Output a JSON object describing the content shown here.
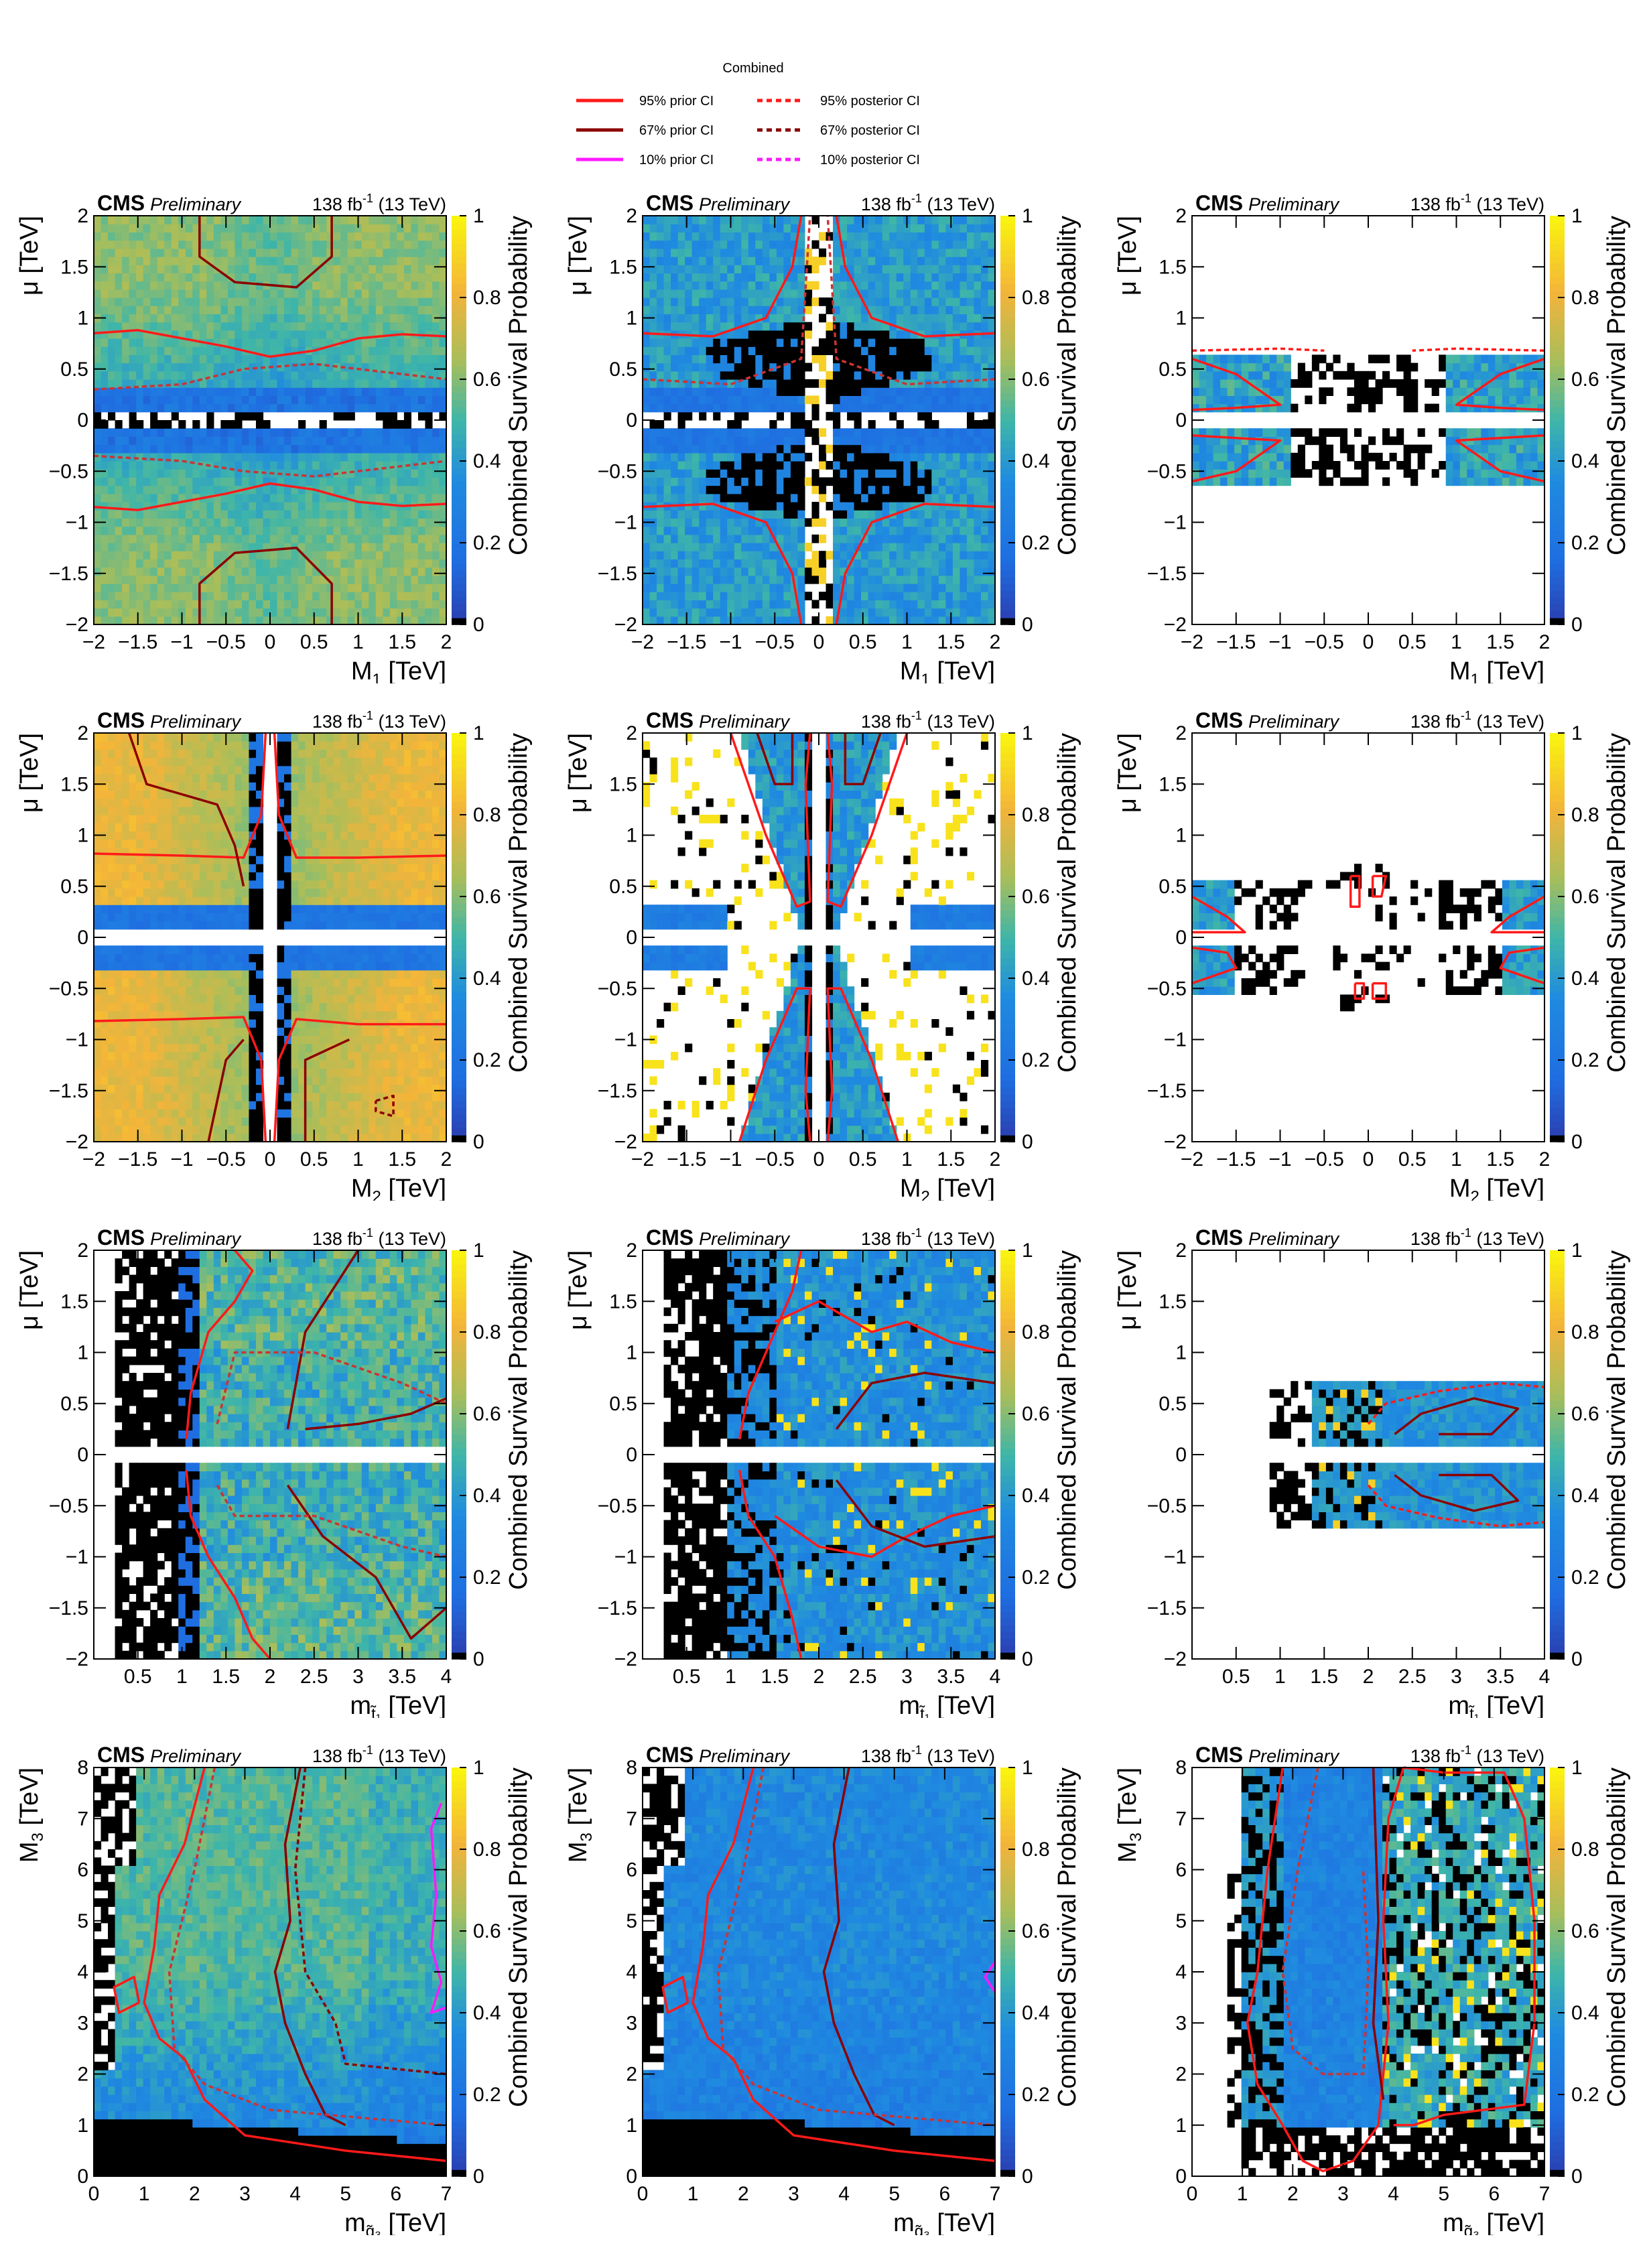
{
  "legend": {
    "title": "Combined",
    "entries": [
      {
        "label": "95%  prior CI",
        "color": "#ff1a1a",
        "style": "solid"
      },
      {
        "label": "95% posterior CI",
        "color": "#ff1a1a",
        "style": "dashed"
      },
      {
        "label": "67%  prior CI",
        "color": "#8b0000",
        "style": "solid"
      },
      {
        "label": "67% posterior CI",
        "color": "#8b0000",
        "style": "dashed"
      },
      {
        "label": "10%  prior CI",
        "color": "#ff1aff",
        "style": "solid"
      },
      {
        "label": "10% posterior CI",
        "color": "#ff1aff",
        "style": "dashed"
      }
    ]
  },
  "common": {
    "cms": "CMS",
    "preliminary": "Preliminary",
    "lumi_value": "138 fb",
    "lumi_exp": "-1",
    "energy": "(13 TeV)",
    "zlabel": "Combined Survival Probability",
    "zticks": [
      "0",
      "0.2",
      "0.4",
      "0.6",
      "0.8",
      "1"
    ]
  },
  "colors": {
    "dark_blue": "#2a3fb0",
    "blue": "#1f8be0",
    "teal": "#3fb6a8",
    "green_yellow": "#a9be5a",
    "orange": "#f4b43a",
    "yellow": "#f9f30f",
    "black": "#000000",
    "white": "#ffffff"
  },
  "chart_data": [
    {
      "id": "r1c1",
      "type": "heatmap",
      "xlabel": "M",
      "xsub": "1",
      "xunit": "[TeV]",
      "ylabel": "μ [TeV]",
      "xlim": [
        -2,
        2
      ],
      "ylim": [
        -2,
        2
      ],
      "xticks": [
        "−2",
        "−1.5",
        "−1",
        "−0.5",
        "0",
        "0.5",
        "1",
        "1.5",
        "2"
      ],
      "yticks": [
        "−2",
        "−1.5",
        "−1",
        "−0.5",
        "0",
        "0.5",
        "1",
        "1.5",
        "2"
      ],
      "pattern": "m1_full",
      "contour_values_95": [
        [
          -2,
          0.85
        ],
        [
          -1,
          0.82
        ],
        [
          0,
          0.62
        ],
        [
          1,
          0.8
        ],
        [
          2,
          0.82
        ]
      ]
    },
    {
      "id": "r1c2",
      "type": "heatmap",
      "xlabel": "M",
      "xsub": "1",
      "xunit": "[TeV]",
      "ylabel": "μ [TeV]",
      "xlim": [
        -2,
        2
      ],
      "ylim": [
        -2,
        2
      ],
      "xticks": [
        "−2",
        "−1.5",
        "−1",
        "−0.5",
        "0",
        "0.5",
        "1",
        "1.5",
        "2"
      ],
      "yticks": [
        "−2",
        "−1.5",
        "−1",
        "−0.5",
        "0",
        "0.5",
        "1",
        "1.5",
        "2"
      ],
      "pattern": "m1_cross",
      "contour_values_95": [
        [
          -2,
          0.85
        ],
        [
          -1,
          0.75
        ],
        [
          -0.3,
          1.5
        ],
        [
          0.3,
          1.5
        ],
        [
          1,
          0.75
        ],
        [
          2,
          0.85
        ]
      ]
    },
    {
      "id": "r1c3",
      "type": "heatmap",
      "xlabel": "M",
      "xsub": "1",
      "xunit": "[TeV]",
      "ylabel": "μ [TeV]",
      "xlim": [
        -2,
        2
      ],
      "ylim": [
        -2,
        2
      ],
      "xticks": [
        "−2",
        "−1.5",
        "−1",
        "−0.5",
        "0",
        "0.5",
        "1",
        "1.5",
        "2"
      ],
      "yticks": [
        "−2",
        "−1.5",
        "−1",
        "−0.5",
        "0",
        "0.5",
        "1",
        "1.5",
        "2"
      ],
      "pattern": "m1_band",
      "contour_values_95": [
        [
          -2,
          0.6
        ],
        [
          -1,
          0.55
        ],
        [
          1,
          0.55
        ],
        [
          2,
          0.6
        ]
      ]
    },
    {
      "id": "r2c1",
      "type": "heatmap",
      "xlabel": "M",
      "xsub": "2",
      "xunit": "[TeV]",
      "ylabel": "μ [TeV]",
      "xlim": [
        -2,
        2
      ],
      "ylim": [
        -2,
        2
      ],
      "xticks": [
        "−2",
        "−1.5",
        "−1",
        "−0.5",
        "0",
        "0.5",
        "1",
        "1.5",
        "2"
      ],
      "yticks": [
        "−2",
        "−1.5",
        "−1",
        "−0.5",
        "0",
        "0.5",
        "1",
        "1.5",
        "2"
      ],
      "pattern": "m2_full",
      "contour_values_95": [
        [
          -2,
          0.82
        ],
        [
          -1,
          0.8
        ],
        [
          -0.3,
          0.78
        ],
        [
          1,
          0.78
        ],
        [
          2,
          0.8
        ]
      ]
    },
    {
      "id": "r2c2",
      "type": "heatmap",
      "xlabel": "M",
      "xsub": "2",
      "xunit": "[TeV]",
      "ylabel": "μ [TeV]",
      "xlim": [
        -2,
        2
      ],
      "ylim": [
        -2,
        2
      ],
      "xticks": [
        "−2",
        "−1.5",
        "−1",
        "−0.5",
        "0",
        "0.5",
        "1",
        "1.5",
        "2"
      ],
      "yticks": [
        "−2",
        "−1.5",
        "−1",
        "−0.5",
        "0",
        "0.5",
        "1",
        "1.5",
        "2"
      ],
      "pattern": "m2_cone",
      "contour_values_95": [
        [
          -1,
          2
        ],
        [
          -0.6,
          1
        ],
        [
          -0.2,
          0.3
        ],
        [
          0.2,
          0.3
        ],
        [
          0.6,
          1
        ],
        [
          1,
          2
        ]
      ]
    },
    {
      "id": "r2c3",
      "type": "heatmap",
      "xlabel": "M",
      "xsub": "2",
      "xunit": "[TeV]",
      "ylabel": "μ [TeV]",
      "xlim": [
        -2,
        2
      ],
      "ylim": [
        -2,
        2
      ],
      "xticks": [
        "−2",
        "−1.5",
        "−1",
        "−0.5",
        "0",
        "0.5",
        "1",
        "1.5",
        "2"
      ],
      "yticks": [
        "−2",
        "−1.5",
        "−1",
        "−0.5",
        "0",
        "0.5",
        "1",
        "1.5",
        "2"
      ],
      "pattern": "m2_sparse",
      "contour_values_95": [
        [
          -2,
          0.45
        ],
        [
          -1.5,
          0.2
        ],
        [
          1.5,
          0.2
        ],
        [
          2,
          0.45
        ]
      ]
    },
    {
      "id": "r3c1",
      "type": "heatmap",
      "xlabel": "m",
      "xsub": "t̃₁",
      "xunit": "[TeV]",
      "ylabel": "μ [TeV]",
      "xlim": [
        0,
        4
      ],
      "ylim": [
        -2,
        2
      ],
      "xticks": [
        "0.5",
        "1",
        "1.5",
        "2",
        "2.5",
        "3",
        "3.5",
        "4"
      ],
      "yticks": [
        "−2",
        "−1.5",
        "−1",
        "−0.5",
        "0",
        "0.5",
        "1",
        "1.5",
        "2"
      ],
      "pattern": "stop_full",
      "contour_values_95": [
        [
          1,
          0.3
        ],
        [
          1.3,
          1.2
        ],
        [
          2,
          1.5
        ],
        [
          4,
          0.5
        ]
      ]
    },
    {
      "id": "r3c2",
      "type": "heatmap",
      "xlabel": "m",
      "xsub": "t̃₁",
      "xunit": "[TeV]",
      "ylabel": "μ [TeV]",
      "xlim": [
        0,
        4
      ],
      "ylim": [
        -2,
        2
      ],
      "xticks": [
        "0.5",
        "1",
        "1.5",
        "2",
        "2.5",
        "3",
        "3.5",
        "4"
      ],
      "yticks": [
        "−2",
        "−1.5",
        "−1",
        "−0.5",
        "0",
        "0.5",
        "1",
        "1.5",
        "2"
      ],
      "pattern": "stop_mid",
      "contour_values_95": [
        [
          1.1,
          0.2
        ],
        [
          1.5,
          1.5
        ],
        [
          2.5,
          1.2
        ],
        [
          4,
          0.7
        ]
      ]
    },
    {
      "id": "r3c3",
      "type": "heatmap",
      "xlabel": "m",
      "xsub": "t̃₁",
      "xunit": "[TeV]",
      "ylabel": "μ [TeV]",
      "xlim": [
        0,
        4
      ],
      "ylim": [
        -2,
        2
      ],
      "xticks": [
        "0.5",
        "1",
        "1.5",
        "2",
        "2.5",
        "3",
        "3.5",
        "4"
      ],
      "yticks": [
        "−2",
        "−1.5",
        "−1",
        "−0.5",
        "0",
        "0.5",
        "1",
        "1.5",
        "2"
      ],
      "pattern": "stop_band",
      "contour_values_95": [
        [
          2,
          0.4
        ],
        [
          3,
          0.6
        ],
        [
          4,
          0.5
        ]
      ]
    },
    {
      "id": "r4c1",
      "type": "heatmap",
      "xlabel": "m",
      "xsub": "q̃₃",
      "xunit": "[TeV]",
      "ylabel": "M",
      "ysub": "3",
      "yunit": "[TeV]",
      "xlim": [
        0,
        7
      ],
      "ylim": [
        0,
        8
      ],
      "xticks": [
        "0",
        "1",
        "2",
        "3",
        "4",
        "5",
        "6",
        "7"
      ],
      "yticks": [
        "0",
        "1",
        "2",
        "3",
        "4",
        "5",
        "6",
        "7",
        "8"
      ],
      "pattern": "gluino_full",
      "contour_values_95": [
        [
          0.5,
          3.5
        ],
        [
          1.5,
          1.5
        ],
        [
          3,
          0.8
        ],
        [
          7,
          0.4
        ]
      ]
    },
    {
      "id": "r4c2",
      "type": "heatmap",
      "xlabel": "m",
      "xsub": "q̃₃",
      "xunit": "[TeV]",
      "ylabel": "M",
      "ysub": "3",
      "yunit": "[TeV]",
      "xlim": [
        0,
        7
      ],
      "ylim": [
        0,
        8
      ],
      "xticks": [
        "0",
        "1",
        "2",
        "3",
        "4",
        "5",
        "6",
        "7"
      ],
      "yticks": [
        "0",
        "1",
        "2",
        "3",
        "4",
        "5",
        "6",
        "7",
        "8"
      ],
      "pattern": "gluino_mid",
      "contour_values_95": [
        [
          0.5,
          3.5
        ],
        [
          1.5,
          1.5
        ],
        [
          3,
          0.8
        ],
        [
          7,
          0.4
        ]
      ]
    },
    {
      "id": "r4c3",
      "type": "heatmap",
      "xlabel": "m",
      "xsub": "q̃₃",
      "xunit": "[TeV]",
      "ylabel": "M",
      "ysub": "3",
      "yunit": "[TeV]",
      "xlim": [
        0,
        7
      ],
      "ylim": [
        0,
        8
      ],
      "xticks": [
        "0",
        "1",
        "2",
        "3",
        "4",
        "5",
        "6",
        "7"
      ],
      "yticks": [
        "0",
        "1",
        "2",
        "3",
        "4",
        "5",
        "6",
        "7",
        "8"
      ],
      "pattern": "gluino_sparse",
      "contour_values_95": [
        [
          1,
          6
        ],
        [
          1.5,
          1
        ],
        [
          3.5,
          0.2
        ],
        [
          4,
          8
        ]
      ]
    }
  ]
}
